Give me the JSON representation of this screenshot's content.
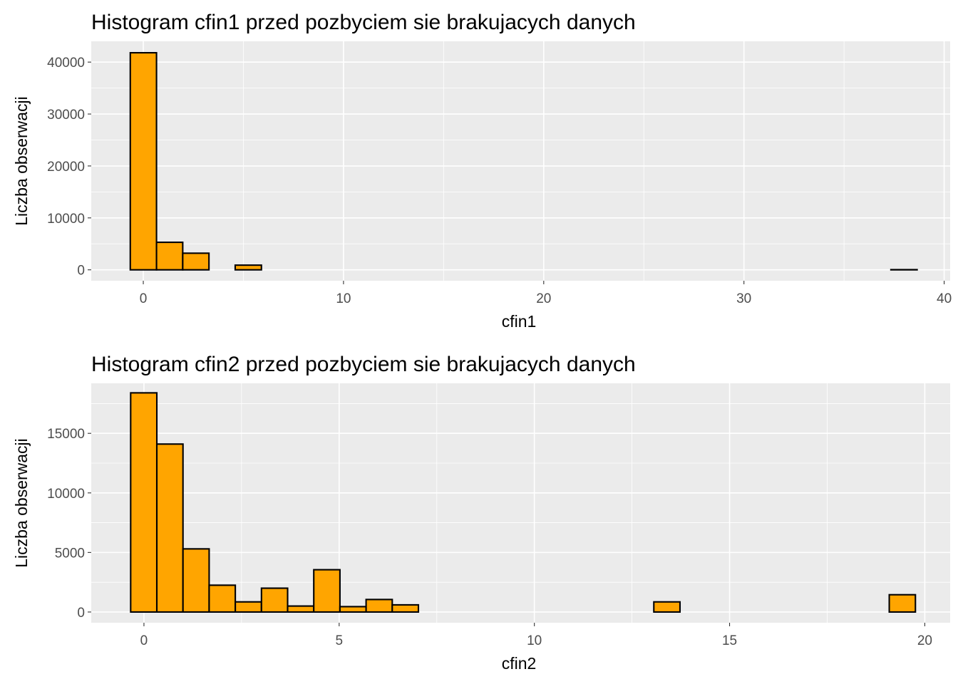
{
  "chart_data": [
    {
      "type": "bar",
      "title": "Histogram cfin1 przed pozbyciem sie brakujacych danych",
      "xlabel": "cfin1",
      "ylabel": "Liczba obserwacji",
      "xlim": [
        -2.6,
        40.3
      ],
      "ylim": [
        -2100,
        44000
      ],
      "x_ticks": [
        0,
        10,
        20,
        30,
        40
      ],
      "x_tick_labels": [
        "0",
        "10",
        "20",
        "30",
        "40"
      ],
      "y_ticks": [
        0,
        10000,
        20000,
        30000,
        40000
      ],
      "y_tick_labels": [
        "0",
        "10000",
        "20000",
        "30000",
        "40000"
      ],
      "bin_start": -0.65,
      "bin_width": 1.31,
      "bins": 30,
      "values": [
        41800,
        5300,
        3200,
        0,
        900,
        0,
        0,
        0,
        0,
        0,
        0,
        0,
        0,
        0,
        0,
        0,
        0,
        0,
        0,
        0,
        0,
        0,
        0,
        0,
        0,
        0,
        0,
        0,
        0,
        30
      ],
      "bar_fill": "#FFA500",
      "bar_outline": "#000000",
      "grid": true,
      "legend": "none"
    },
    {
      "type": "bar",
      "title": "Histogram cfin2 przed pozbyciem sie brakujacych danych",
      "xlabel": "cfin2",
      "ylabel": "Liczba obserwacji",
      "xlim": [
        -1.35,
        20.65
      ],
      "ylim": [
        -900,
        19200
      ],
      "x_ticks": [
        0,
        5,
        10,
        15,
        20
      ],
      "x_tick_labels": [
        "0",
        "5",
        "10",
        "15",
        "20"
      ],
      "y_ticks": [
        0,
        5000,
        10000,
        15000
      ],
      "y_tick_labels": [
        "0",
        "5000",
        "10000",
        "15000"
      ],
      "bin_start": -0.34,
      "bin_width": 0.67,
      "bins": 30,
      "values": [
        18400,
        14100,
        5300,
        2250,
        850,
        2000,
        500,
        3550,
        450,
        1050,
        600,
        0,
        0,
        0,
        0,
        0,
        0,
        0,
        0,
        0,
        850,
        0,
        0,
        0,
        0,
        0,
        0,
        0,
        0,
        1450
      ],
      "bar_fill": "#FFA500",
      "bar_outline": "#000000",
      "grid": true,
      "legend": "none"
    }
  ]
}
